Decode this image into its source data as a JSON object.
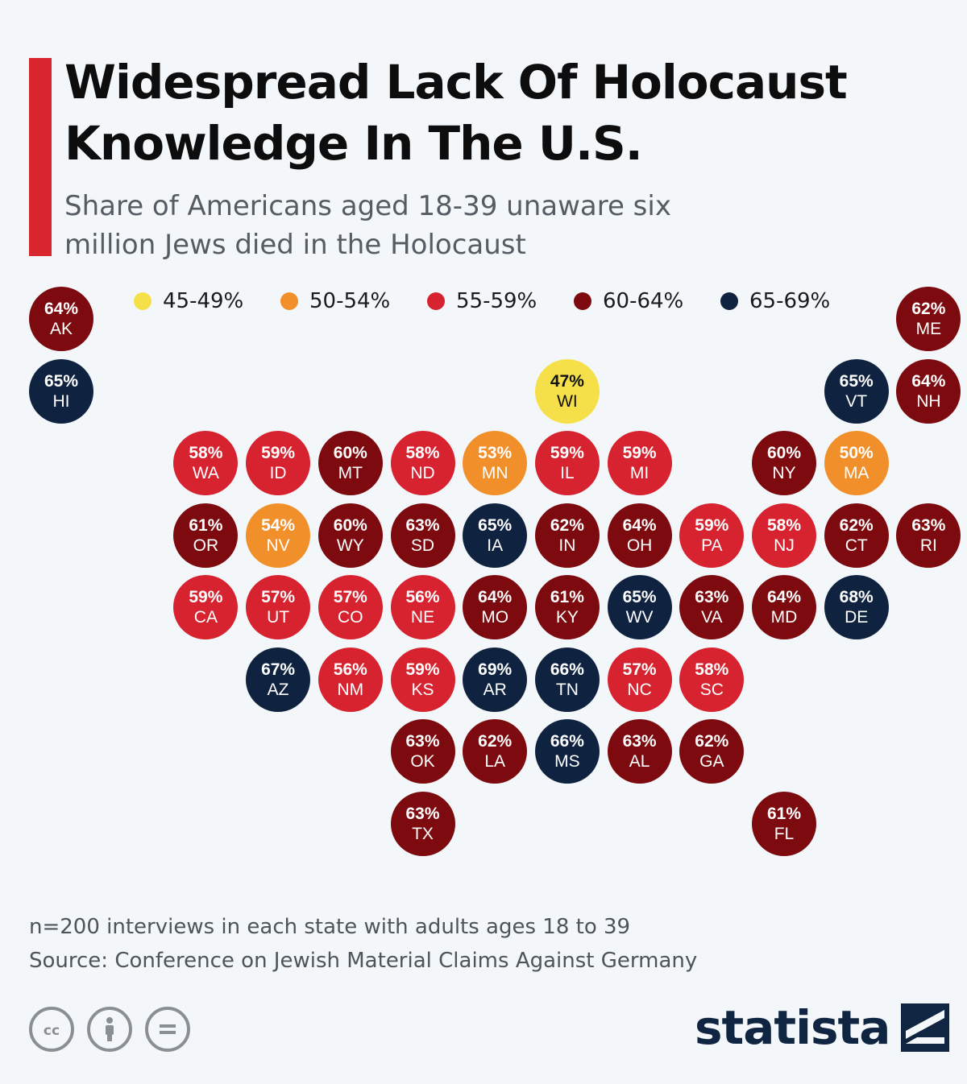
{
  "title": "Widespread Lack Of Holocaust Knowledge In The U.S.",
  "subtitle_line1": "Share of Americans aged 18-39 unaware six",
  "subtitle_line2": "million Jews died in the Holocaust",
  "legend": [
    {
      "label": "45-49%",
      "color": "#f6e04a"
    },
    {
      "label": "50-54%",
      "color": "#f1902b"
    },
    {
      "label": "55-59%",
      "color": "#d7232f"
    },
    {
      "label": "60-64%",
      "color": "#7c0a0e"
    },
    {
      "label": "65-69%",
      "color": "#0f2341"
    }
  ],
  "states": [
    {
      "abbr": "AK",
      "pct": "64%",
      "bin": 3,
      "col": 0,
      "row": 0
    },
    {
      "abbr": "ME",
      "pct": "62%",
      "bin": 3,
      "col": 12,
      "row": 0
    },
    {
      "abbr": "HI",
      "pct": "65%",
      "bin": 4,
      "col": 0,
      "row": 1
    },
    {
      "abbr": "WI",
      "pct": "47%",
      "bin": 0,
      "col": 7,
      "row": 1
    },
    {
      "abbr": "VT",
      "pct": "65%",
      "bin": 4,
      "col": 11,
      "row": 1
    },
    {
      "abbr": "NH",
      "pct": "64%",
      "bin": 3,
      "col": 12,
      "row": 1
    },
    {
      "abbr": "WA",
      "pct": "58%",
      "bin": 2,
      "col": 2,
      "row": 2
    },
    {
      "abbr": "ID",
      "pct": "59%",
      "bin": 2,
      "col": 3,
      "row": 2
    },
    {
      "abbr": "MT",
      "pct": "60%",
      "bin": 3,
      "col": 4,
      "row": 2
    },
    {
      "abbr": "ND",
      "pct": "58%",
      "bin": 2,
      "col": 5,
      "row": 2
    },
    {
      "abbr": "MN",
      "pct": "53%",
      "bin": 1,
      "col": 6,
      "row": 2
    },
    {
      "abbr": "IL",
      "pct": "59%",
      "bin": 2,
      "col": 7,
      "row": 2
    },
    {
      "abbr": "MI",
      "pct": "59%",
      "bin": 2,
      "col": 8,
      "row": 2
    },
    {
      "abbr": "NY",
      "pct": "60%",
      "bin": 3,
      "col": 10,
      "row": 2
    },
    {
      "abbr": "MA",
      "pct": "50%",
      "bin": 1,
      "col": 11,
      "row": 2
    },
    {
      "abbr": "OR",
      "pct": "61%",
      "bin": 3,
      "col": 2,
      "row": 3
    },
    {
      "abbr": "NV",
      "pct": "54%",
      "bin": 1,
      "col": 3,
      "row": 3
    },
    {
      "abbr": "WY",
      "pct": "60%",
      "bin": 3,
      "col": 4,
      "row": 3
    },
    {
      "abbr": "SD",
      "pct": "63%",
      "bin": 3,
      "col": 5,
      "row": 3
    },
    {
      "abbr": "IA",
      "pct": "65%",
      "bin": 4,
      "col": 6,
      "row": 3
    },
    {
      "abbr": "IN",
      "pct": "62%",
      "bin": 3,
      "col": 7,
      "row": 3
    },
    {
      "abbr": "OH",
      "pct": "64%",
      "bin": 3,
      "col": 8,
      "row": 3
    },
    {
      "abbr": "PA",
      "pct": "59%",
      "bin": 2,
      "col": 9,
      "row": 3
    },
    {
      "abbr": "NJ",
      "pct": "58%",
      "bin": 2,
      "col": 10,
      "row": 3
    },
    {
      "abbr": "CT",
      "pct": "62%",
      "bin": 3,
      "col": 11,
      "row": 3
    },
    {
      "abbr": "RI",
      "pct": "63%",
      "bin": 3,
      "col": 12,
      "row": 3
    },
    {
      "abbr": "CA",
      "pct": "59%",
      "bin": 2,
      "col": 2,
      "row": 4
    },
    {
      "abbr": "UT",
      "pct": "57%",
      "bin": 2,
      "col": 3,
      "row": 4
    },
    {
      "abbr": "CO",
      "pct": "57%",
      "bin": 2,
      "col": 4,
      "row": 4
    },
    {
      "abbr": "NE",
      "pct": "56%",
      "bin": 2,
      "col": 5,
      "row": 4
    },
    {
      "abbr": "MO",
      "pct": "64%",
      "bin": 3,
      "col": 6,
      "row": 4
    },
    {
      "abbr": "KY",
      "pct": "61%",
      "bin": 3,
      "col": 7,
      "row": 4
    },
    {
      "abbr": "WV",
      "pct": "65%",
      "bin": 4,
      "col": 8,
      "row": 4
    },
    {
      "abbr": "VA",
      "pct": "63%",
      "bin": 3,
      "col": 9,
      "row": 4
    },
    {
      "abbr": "MD",
      "pct": "64%",
      "bin": 3,
      "col": 10,
      "row": 4
    },
    {
      "abbr": "DE",
      "pct": "68%",
      "bin": 4,
      "col": 11,
      "row": 4
    },
    {
      "abbr": "AZ",
      "pct": "67%",
      "bin": 4,
      "col": 3,
      "row": 5
    },
    {
      "abbr": "NM",
      "pct": "56%",
      "bin": 2,
      "col": 4,
      "row": 5
    },
    {
      "abbr": "KS",
      "pct": "59%",
      "bin": 2,
      "col": 5,
      "row": 5
    },
    {
      "abbr": "AR",
      "pct": "69%",
      "bin": 4,
      "col": 6,
      "row": 5
    },
    {
      "abbr": "TN",
      "pct": "66%",
      "bin": 4,
      "col": 7,
      "row": 5
    },
    {
      "abbr": "NC",
      "pct": "57%",
      "bin": 2,
      "col": 8,
      "row": 5
    },
    {
      "abbr": "SC",
      "pct": "58%",
      "bin": 2,
      "col": 9,
      "row": 5
    },
    {
      "abbr": "OK",
      "pct": "63%",
      "bin": 3,
      "col": 5,
      "row": 6
    },
    {
      "abbr": "LA",
      "pct": "62%",
      "bin": 3,
      "col": 6,
      "row": 6
    },
    {
      "abbr": "MS",
      "pct": "66%",
      "bin": 4,
      "col": 7,
      "row": 6
    },
    {
      "abbr": "AL",
      "pct": "63%",
      "bin": 3,
      "col": 8,
      "row": 6
    },
    {
      "abbr": "GA",
      "pct": "62%",
      "bin": 3,
      "col": 9,
      "row": 6
    },
    {
      "abbr": "TX",
      "pct": "63%",
      "bin": 3,
      "col": 5,
      "row": 7
    },
    {
      "abbr": "FL",
      "pct": "61%",
      "bin": 3,
      "col": 10,
      "row": 7
    }
  ],
  "footnote": "n=200 interviews in each state with adults ages 18 to 39",
  "source": "Source: Conference on Jewish Material Claims Against Germany",
  "brand": "statista",
  "license_icons": [
    "cc-icon",
    "attribution-icon",
    "no-derivatives-icon"
  ]
}
